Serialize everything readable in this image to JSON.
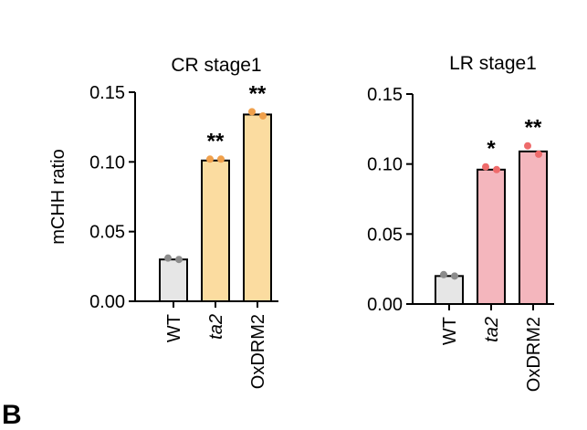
{
  "figure": {
    "panel_letter": "B"
  },
  "chart_data": [
    {
      "type": "bar",
      "title": "CR stage1",
      "ylabel": "mCHH ratio",
      "xlabel": "",
      "ylim": [
        0,
        0.15
      ],
      "yticks": [
        "0.00",
        "0.05",
        "0.10",
        "0.15"
      ],
      "categories": [
        "WT",
        "ta2",
        "OxDRM2"
      ],
      "italic_categories": [
        false,
        true,
        false
      ],
      "values": [
        0.03,
        0.101,
        0.134
      ],
      "points": [
        [
          0.031,
          0.03
        ],
        [
          0.102,
          0.102
        ],
        [
          0.136,
          0.133
        ]
      ],
      "significance": [
        "",
        "**",
        "**"
      ],
      "bar_colors": [
        "#e6e6e6",
        "#fbdca0",
        "#fbdca0"
      ],
      "point_colors": [
        "#8c8c8c",
        "#f0a04b",
        "#f0a04b"
      ]
    },
    {
      "type": "bar",
      "title": "LR stage1",
      "ylabel": "",
      "xlabel": "",
      "ylim": [
        0,
        0.15
      ],
      "yticks": [
        "0.00",
        "0.05",
        "0.10",
        "0.15"
      ],
      "categories": [
        "WT",
        "ta2",
        "OxDRM2"
      ],
      "italic_categories": [
        false,
        true,
        false
      ],
      "values": [
        0.02,
        0.096,
        0.109
      ],
      "points": [
        [
          0.021,
          0.02
        ],
        [
          0.098,
          0.096
        ],
        [
          0.113,
          0.107
        ]
      ],
      "significance": [
        "",
        "*",
        "**"
      ],
      "bar_colors": [
        "#e6e6e6",
        "#f4b6bd",
        "#f4b6bd"
      ],
      "point_colors": [
        "#8c8c8c",
        "#ee6b6b",
        "#ee6b6b"
      ]
    }
  ]
}
